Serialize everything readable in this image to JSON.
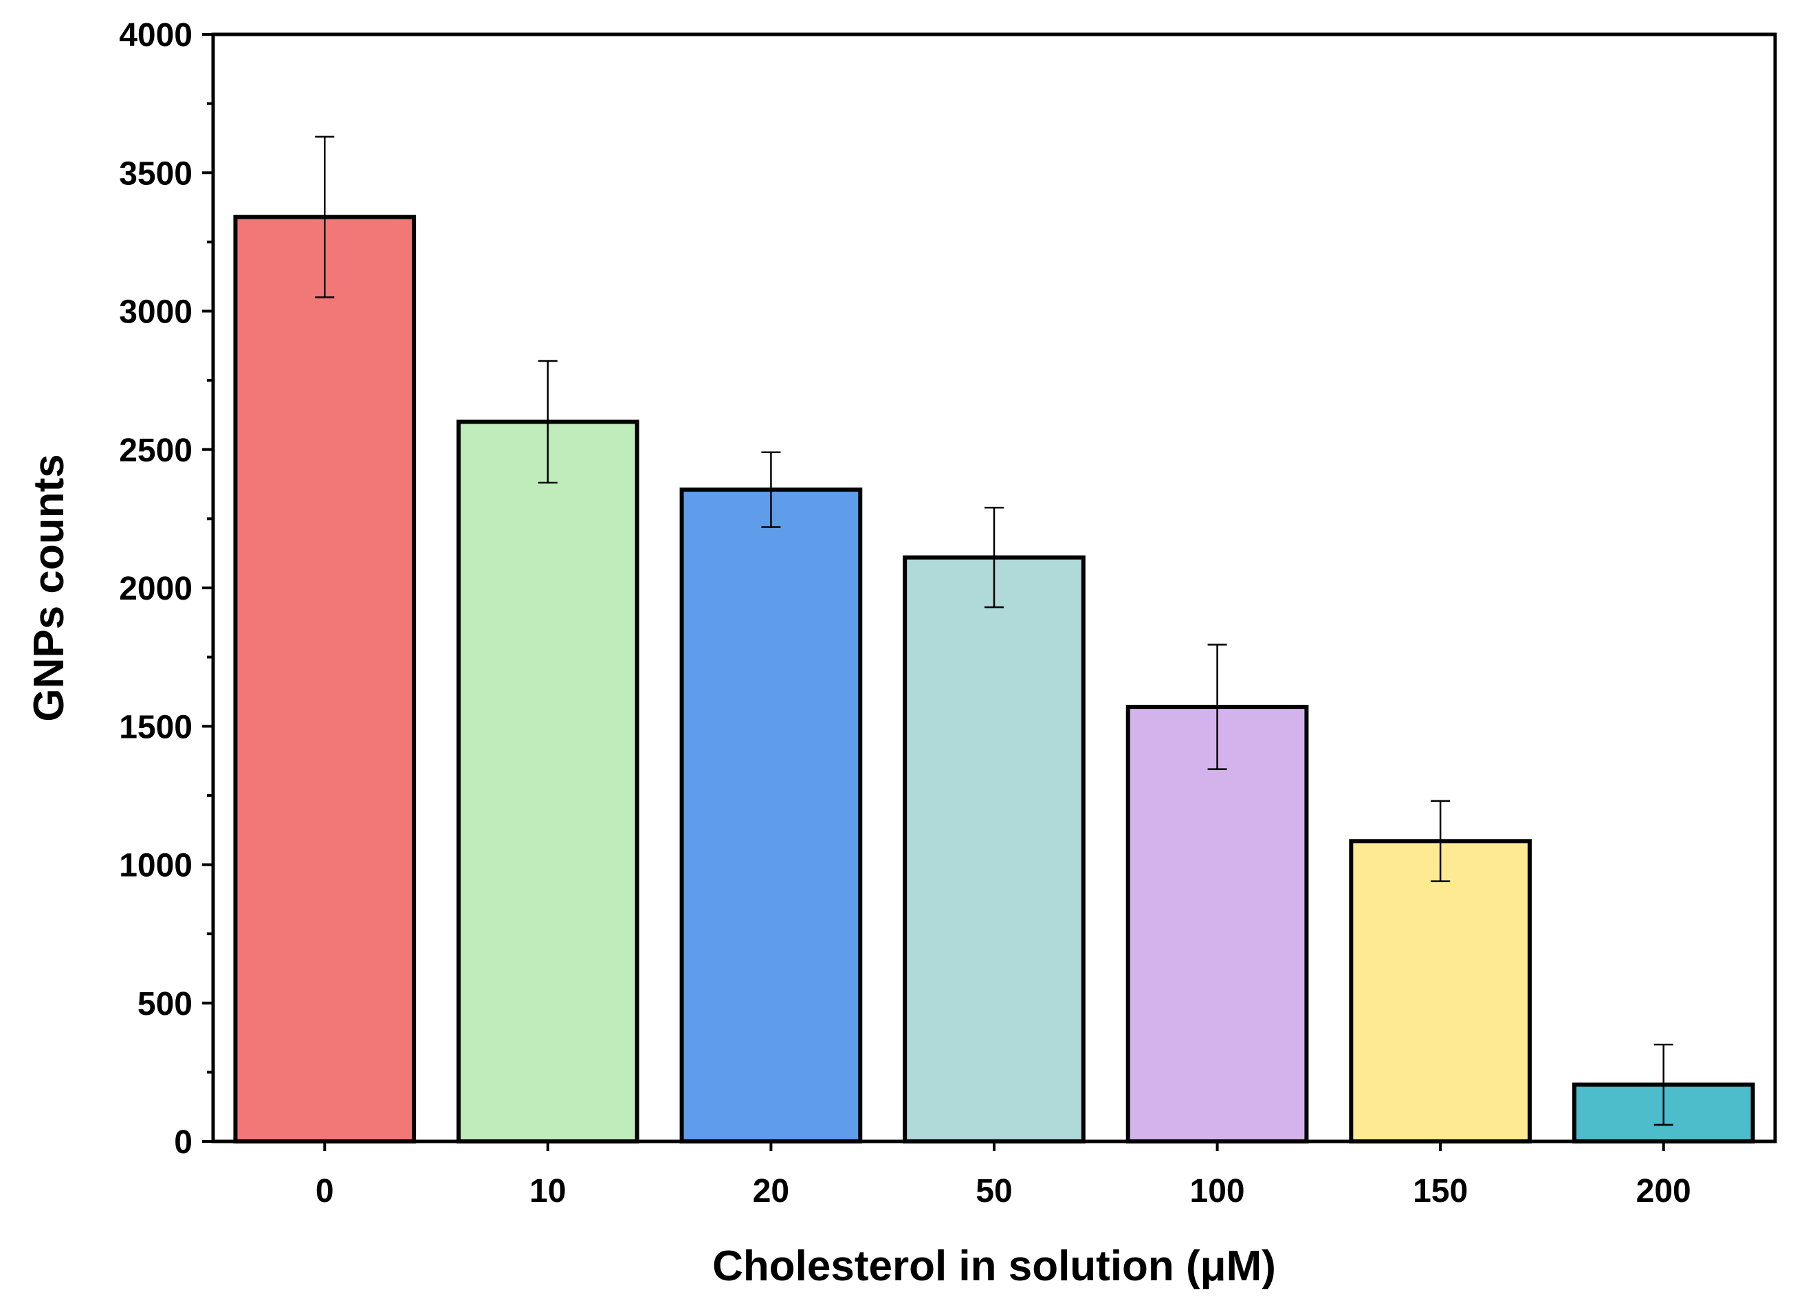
{
  "chart_data": {
    "type": "bar",
    "title": "",
    "xlabel": "Cholesterol in solution (μM)",
    "ylabel": "GNPs counts",
    "ylim": [
      0,
      4000
    ],
    "yticks": [
      0,
      500,
      1000,
      1500,
      2000,
      2500,
      3000,
      3500,
      4000
    ],
    "yticks_labels": [
      "0",
      "500",
      "1000",
      "1500",
      "2000",
      "2500",
      "3000",
      "3500",
      "4000"
    ],
    "categories": [
      "0",
      "10",
      "20",
      "50",
      "100",
      "150",
      "200"
    ],
    "values": [
      3340,
      2600,
      2355,
      2110,
      1570,
      1085,
      205
    ],
    "errors": [
      290,
      220,
      135,
      180,
      225,
      145,
      145
    ],
    "colors": [
      "#F27777",
      "#C0ECBC",
      "#5F9CEA",
      "#B0D9D9",
      "#D4B3EC",
      "#FDEA92",
      "#4DBCCB"
    ],
    "grid": false,
    "legend": "none"
  }
}
